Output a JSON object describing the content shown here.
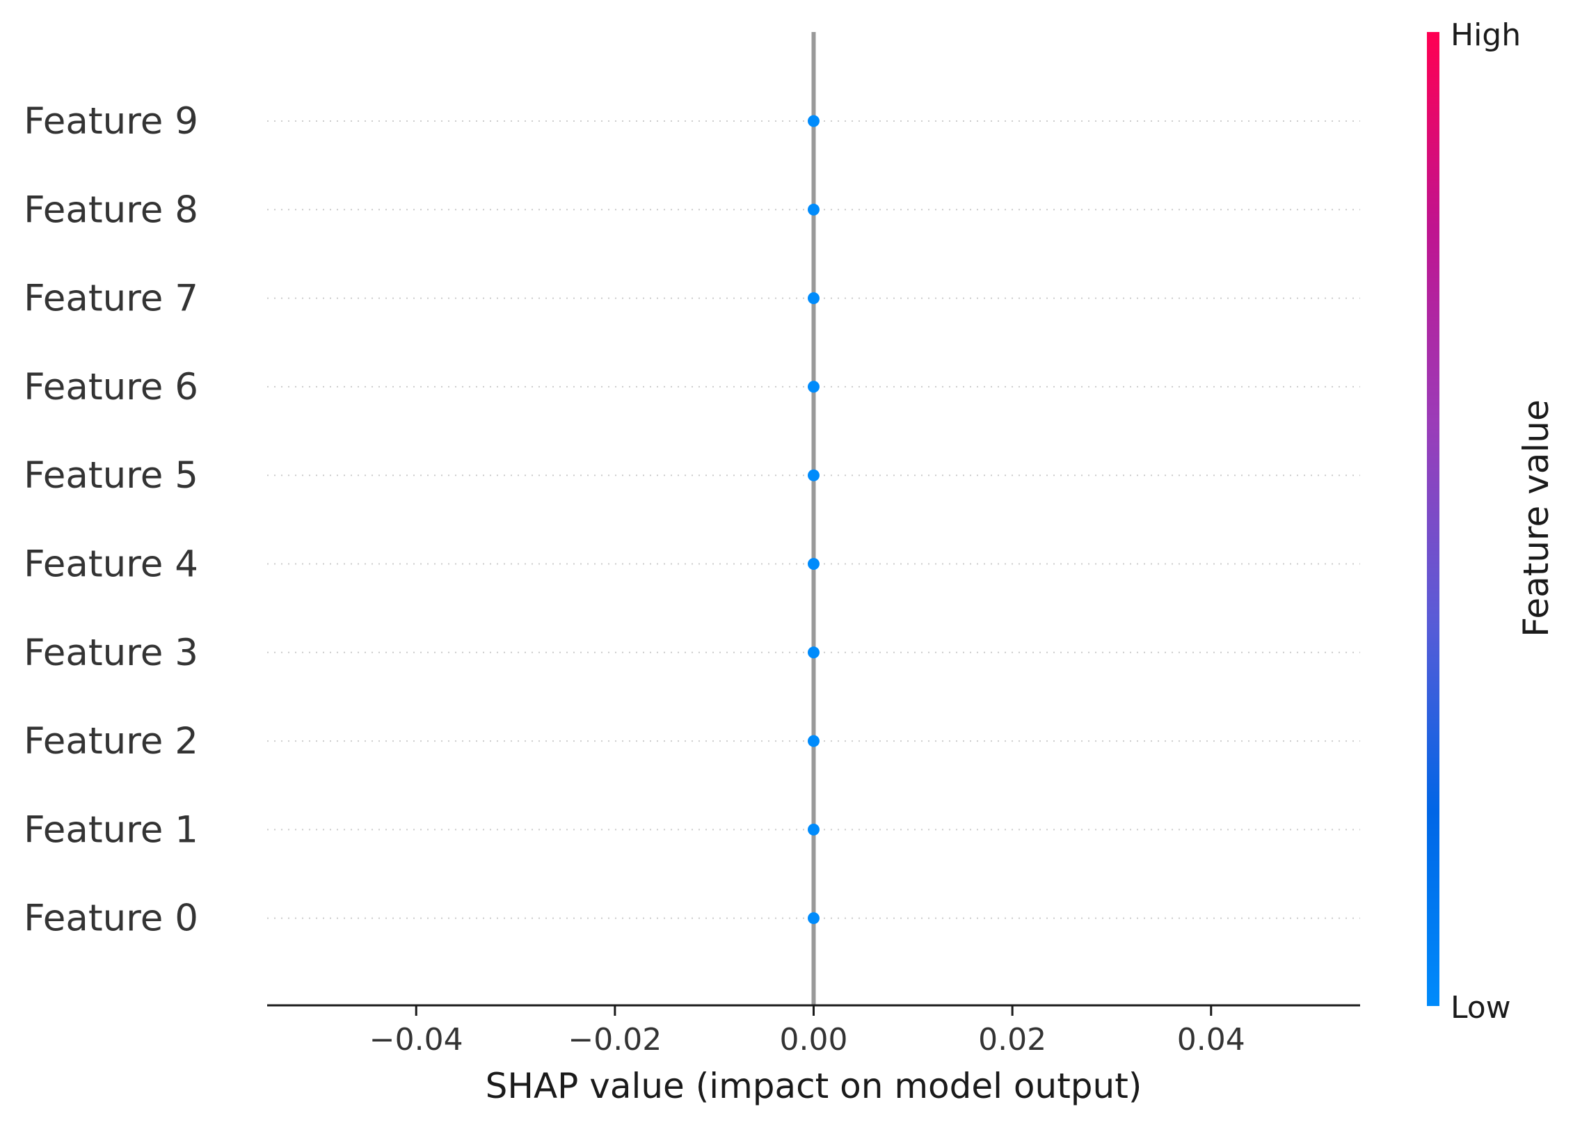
{
  "chart_data": {
    "type": "scatter",
    "xlabel": "SHAP value (impact on model output)",
    "xlim": [
      -0.055,
      0.055
    ],
    "x_ticks": [
      -0.04,
      -0.02,
      0.0,
      0.02,
      0.04
    ],
    "x_tick_labels": [
      "−0.04",
      "−0.02",
      "0.00",
      "0.02",
      "0.04"
    ],
    "features": [
      "Feature 9",
      "Feature 8",
      "Feature 7",
      "Feature 6",
      "Feature 5",
      "Feature 4",
      "Feature 3",
      "Feature 2",
      "Feature 1",
      "Feature 0"
    ],
    "points": [
      {
        "feature": "Feature 9",
        "x": 0.0
      },
      {
        "feature": "Feature 8",
        "x": 0.0
      },
      {
        "feature": "Feature 7",
        "x": 0.0
      },
      {
        "feature": "Feature 6",
        "x": 0.0
      },
      {
        "feature": "Feature 5",
        "x": 0.0
      },
      {
        "feature": "Feature 4",
        "x": 0.0
      },
      {
        "feature": "Feature 3",
        "x": 0.0
      },
      {
        "feature": "Feature 2",
        "x": 0.0
      },
      {
        "feature": "Feature 1",
        "x": 0.0
      },
      {
        "feature": "Feature 0",
        "x": 0.0
      }
    ],
    "zero_line": true,
    "grid": "dotted horizontal per feature",
    "colorbar": {
      "title": "Feature value",
      "high_label": "High",
      "low_label": "Low",
      "colors": [
        "#008bfb",
        "#0066e6",
        "#5b5bd6",
        "#9b3cb8",
        "#c0148f",
        "#ff0052"
      ]
    },
    "point_color": "#008bfb",
    "zero_line_color": "#999999"
  }
}
